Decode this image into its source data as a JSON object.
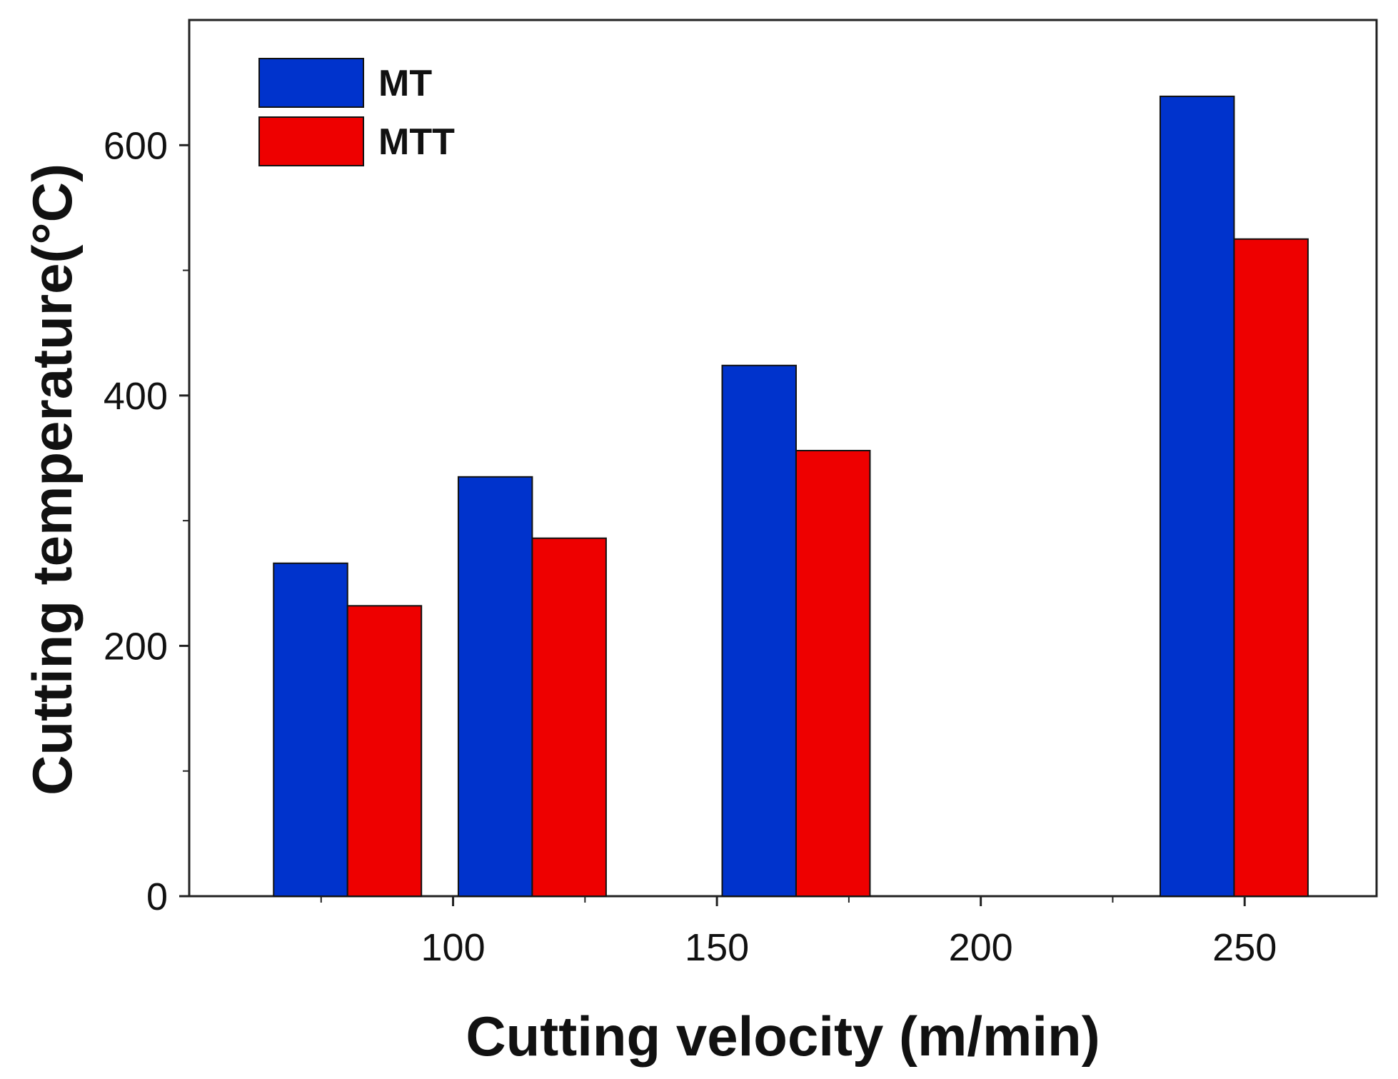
{
  "chart_data": {
    "type": "bar",
    "xlabel": "Cutting velocity (m/min)",
    "ylabel": "Cutting temperature(°C)",
    "xlim": [
      50,
      275
    ],
    "ylim": [
      0,
      700
    ],
    "x_ticks": [
      100,
      150,
      200,
      250
    ],
    "y_ticks": [
      0,
      200,
      400,
      600
    ],
    "categories": [
      80,
      115,
      165,
      248
    ],
    "series": [
      {
        "name": "MT",
        "color": "#0033CC",
        "values": [
          266,
          335,
          424,
          639
        ]
      },
      {
        "name": "MTT",
        "color": "#EE0000",
        "values": [
          232,
          286,
          356,
          525
        ]
      }
    ],
    "bar_width": 14,
    "legend_position": "top-left"
  }
}
